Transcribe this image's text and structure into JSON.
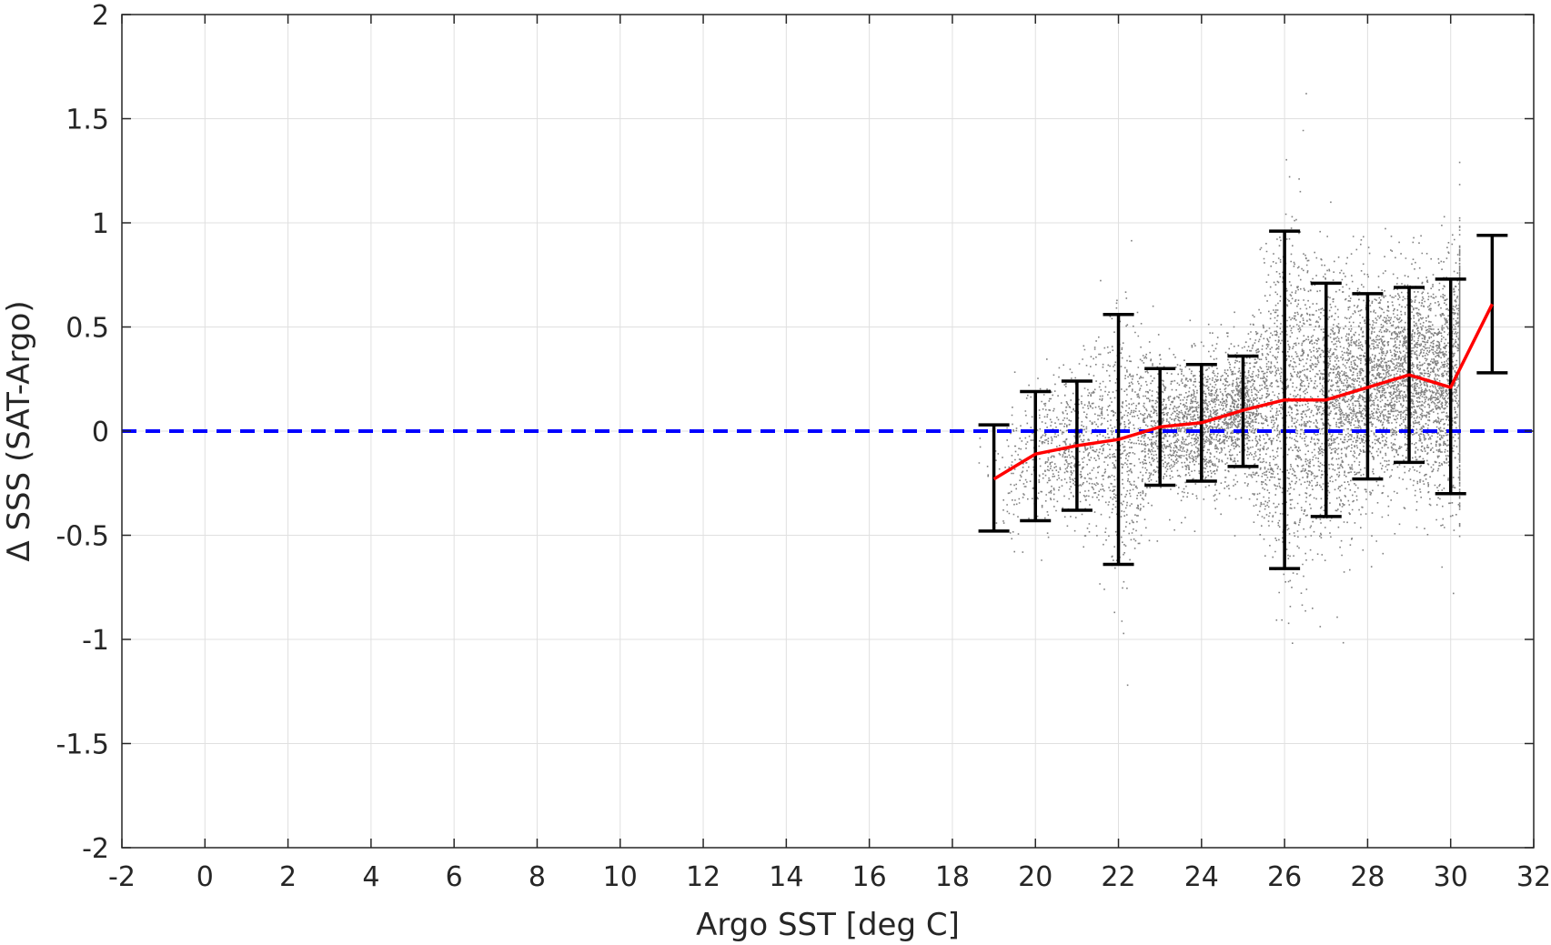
{
  "chart_data": {
    "type": "scatter",
    "title": "",
    "xlabel": "Argo SST [deg C]",
    "ylabel": "Δ SSS (SAT-Argo)",
    "xlim": [
      -2,
      32
    ],
    "ylim": [
      -2,
      2
    ],
    "xticks": [
      -2,
      0,
      2,
      4,
      6,
      8,
      10,
      12,
      14,
      16,
      18,
      20,
      22,
      24,
      26,
      28,
      30,
      32
    ],
    "yticks": [
      -2,
      -1.5,
      -1,
      -0.5,
      0,
      0.5,
      1,
      1.5,
      2
    ],
    "xtick_labels": [
      "-2",
      "0",
      "2",
      "4",
      "6",
      "8",
      "10",
      "12",
      "14",
      "16",
      "18",
      "20",
      "22",
      "24",
      "26",
      "28",
      "30",
      "32"
    ],
    "ytick_labels": [
      "-2",
      "-1.5",
      "-1",
      "-0.5",
      "0",
      "0.5",
      "1",
      "1.5",
      "2"
    ],
    "grid": true,
    "colors": {
      "scatter": "#808080",
      "mean_line": "#ff0000",
      "error_bars": "#000000",
      "zero_line": "#0000ff",
      "axes": "#262626",
      "grid": "#e0e0e0"
    },
    "scatter_summary": {
      "description_x_range": [
        19,
        31
      ],
      "approx_point_count": 15000
    },
    "series": [
      {
        "type": "line",
        "x": [
          19,
          20,
          21,
          22,
          23,
          24,
          25,
          26,
          27,
          28,
          29,
          30,
          31
        ],
        "values": [
          -0.23,
          -0.11,
          -0.07,
          -0.04,
          0.02,
          0.04,
          0.1,
          0.15,
          0.15,
          0.21,
          0.27,
          0.21,
          0.61
        ]
      },
      {
        "type": "errorbar",
        "x": [
          19,
          20,
          21,
          22,
          23,
          24,
          25,
          26,
          27,
          28,
          29,
          30,
          31
        ],
        "lower": [
          -0.48,
          -0.43,
          -0.38,
          -0.64,
          -0.26,
          -0.24,
          -0.17,
          -0.66,
          -0.41,
          -0.23,
          -0.15,
          -0.3,
          0.28
        ],
        "upper": [
          0.03,
          0.19,
          0.24,
          0.56,
          0.3,
          0.32,
          0.36,
          0.96,
          0.71,
          0.66,
          0.69,
          0.73,
          0.94
        ]
      },
      {
        "type": "hline",
        "y": 0,
        "style": "dashed"
      }
    ]
  }
}
